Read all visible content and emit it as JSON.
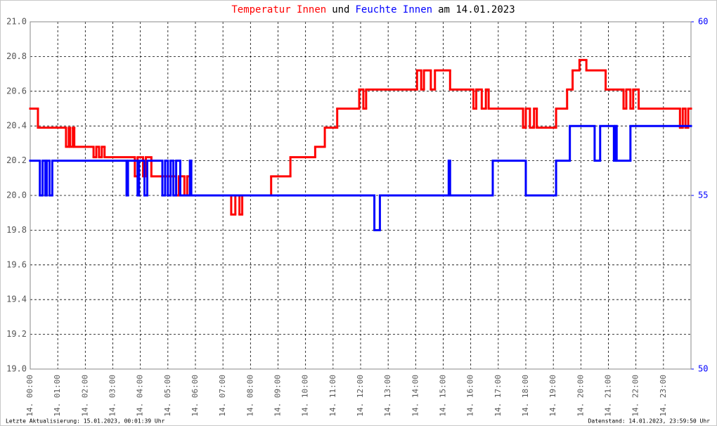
{
  "chart_data": {
    "type": "line",
    "step": "post",
    "title": [
      "Temperatur Innen",
      "und",
      "Feuchte Innen",
      "am 14.01.2023"
    ],
    "title_colors": [
      "#ff0000",
      "#000000",
      "#0000ff",
      "#000000"
    ],
    "xlim": [
      0,
      24
    ],
    "xticks": [
      {
        "value": 0,
        "label": "14. 00:00"
      },
      {
        "value": 1,
        "label": "14. 01:00"
      },
      {
        "value": 2,
        "label": "14. 02:00"
      },
      {
        "value": 3,
        "label": "14. 03:00"
      },
      {
        "value": 4,
        "label": "14. 04:00"
      },
      {
        "value": 5,
        "label": "14. 05:00"
      },
      {
        "value": 6,
        "label": "14. 06:00"
      },
      {
        "value": 7,
        "label": "14. 07:00"
      },
      {
        "value": 8,
        "label": "14. 08:00"
      },
      {
        "value": 9,
        "label": "14. 09:00"
      },
      {
        "value": 10,
        "label": "14. 10:00"
      },
      {
        "value": 11,
        "label": "14. 11:00"
      },
      {
        "value": 12,
        "label": "14. 12:00"
      },
      {
        "value": 13,
        "label": "14. 13:00"
      },
      {
        "value": 14,
        "label": "14. 14:00"
      },
      {
        "value": 15,
        "label": "14. 15:00"
      },
      {
        "value": 16,
        "label": "14. 16:00"
      },
      {
        "value": 17,
        "label": "14. 17:00"
      },
      {
        "value": 18,
        "label": "14. 18:00"
      },
      {
        "value": 19,
        "label": "14. 19:00"
      },
      {
        "value": 20,
        "label": "14. 20:00"
      },
      {
        "value": 21,
        "label": "14. 21:00"
      },
      {
        "value": 22,
        "label": "14. 22:00"
      },
      {
        "value": 23,
        "label": "14. 23:00"
      }
    ],
    "ylim": [
      19,
      21
    ],
    "yticks": [
      {
        "value": 19,
        "label": "19.0"
      },
      19.2,
      19.4,
      19.6,
      19.8,
      {
        "value": 20,
        "label": "20.0"
      },
      20.2,
      20.4,
      20.6,
      20.8,
      {
        "value": 21,
        "label": "21.0"
      }
    ],
    "y2lim": [
      50,
      60
    ],
    "y2ticks": [
      50,
      55,
      60
    ],
    "grid": true,
    "series": [
      {
        "name": "Temperatur Innen",
        "color": "#ff0000",
        "x": [
          0,
          0.28,
          1.3,
          1.4,
          1.45,
          1.55,
          1.6,
          2.3,
          2.4,
          2.5,
          2.6,
          2.7,
          3.8,
          3.9,
          4.1,
          4.2,
          4.4,
          5.3,
          5.4,
          5.6,
          5.7,
          5.8,
          7.3,
          7.45,
          7.6,
          7.7,
          8.75,
          9.45,
          10.35,
          10.7,
          11.15,
          11.95,
          12.1,
          12.2,
          14.05,
          14.2,
          14.3,
          14.55,
          14.7,
          15.25,
          16.1,
          16.2,
          16.4,
          16.55,
          16.65,
          17.9,
          18.0,
          18.15,
          18.3,
          18.4,
          19.1,
          19.5,
          19.7,
          19.95,
          20.2,
          20.9,
          21.55,
          21.65,
          21.8,
          21.9,
          22.1,
          23.6,
          23.7,
          23.8,
          23.9
        ],
        "values": [
          20.5,
          20.39,
          20.28,
          20.39,
          20.28,
          20.39,
          20.28,
          20.22,
          20.28,
          20.22,
          20.28,
          20.22,
          20.11,
          20.22,
          20.11,
          20.22,
          20.11,
          20.0,
          20.11,
          20.0,
          20.11,
          20.0,
          19.89,
          20.0,
          19.89,
          20.0,
          20.11,
          20.22,
          20.28,
          20.39,
          20.5,
          20.61,
          20.5,
          20.61,
          20.72,
          20.61,
          20.72,
          20.61,
          20.72,
          20.61,
          20.5,
          20.61,
          20.5,
          20.61,
          20.5,
          20.39,
          20.5,
          20.39,
          20.5,
          20.39,
          20.5,
          20.61,
          20.72,
          20.78,
          20.72,
          20.61,
          20.5,
          20.61,
          20.5,
          20.61,
          20.5,
          20.39,
          20.5,
          20.39,
          20.5
        ]
      },
      {
        "name": "Feuchte Innen",
        "color": "#0000ff",
        "axis": "y2",
        "x": [
          0,
          0.35,
          0.45,
          0.55,
          0.6,
          0.7,
          0.8,
          3.5,
          3.55,
          3.9,
          3.95,
          4.15,
          4.25,
          4.8,
          4.9,
          5.0,
          5.1,
          5.2,
          5.3,
          5.45,
          5.8,
          5.85,
          12.5,
          12.7,
          15.2,
          15.25,
          16.8,
          18.0,
          19.1,
          19.6,
          20.5,
          20.7,
          21.2,
          21.25,
          21.3,
          21.8
        ],
        "values": [
          56,
          55,
          56,
          55,
          56,
          55,
          56,
          55,
          56,
          55,
          56,
          55,
          56,
          55,
          56,
          55,
          56,
          55,
          56,
          55,
          56,
          55,
          54,
          55,
          56,
          55,
          56,
          55,
          56,
          57,
          56,
          57,
          56,
          57,
          56,
          57
        ]
      }
    ],
    "footer_left": "Letzte Aktualisierung: 15.01.2023, 00:01:39 Uhr",
    "footer_right": "Datenstand: 14.01.2023, 23:59:50 Uhr"
  }
}
